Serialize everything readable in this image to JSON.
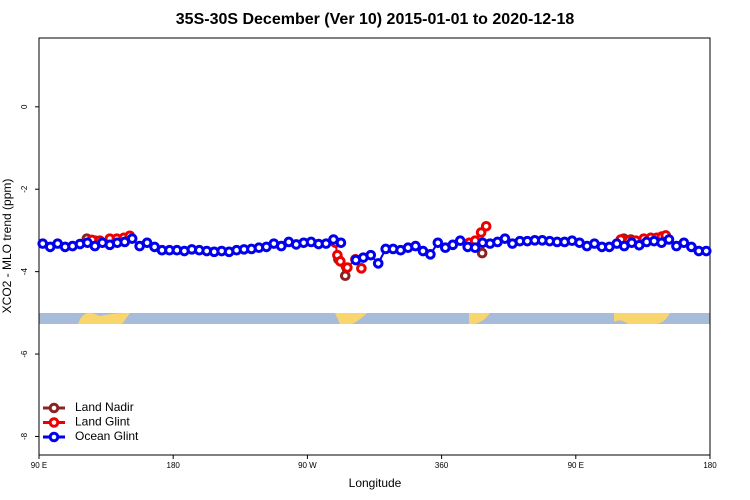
{
  "chart_data": {
    "type": "line",
    "title": "35S-30S December (Ver 10)   2015-01-01 to 2020-12-18",
    "x_label": "Longitude",
    "y_label": "XCO2 - MLO trend (ppm)",
    "xlim": [
      90,
      540
    ],
    "ylim": [
      -8.45,
      1.67
    ],
    "xticks": [
      {
        "value": 90,
        "label": "90 E"
      },
      180,
      {
        "value": 270,
        "label": "90 W"
      },
      360,
      {
        "value": 450,
        "label": "90 E"
      },
      {
        "value": 540,
        "label": "180"
      }
    ],
    "yticks": [
      0,
      -2,
      -4,
      -6,
      -8
    ],
    "legend": "bottom-left",
    "series": [
      {
        "name": "Land Nadir",
        "color": "#8b2323",
        "x": [
          122.1,
          127.5,
          200,
          290.8,
          295.4,
          340,
          383.2,
          387.2,
          430,
          482.2,
          486.9
        ],
        "values": [
          -3.2,
          -3.25,
          null,
          -3.7,
          -4.1,
          null,
          -3.32,
          -3.55,
          null,
          -3.2,
          -3.22
        ]
      },
      {
        "name": "Land Glint",
        "color": "#ee0000",
        "x": [
          125.5,
          130.8,
          137.5,
          142.2,
          146.9,
          150.9,
          200,
          288.8,
          290.1,
          292.1,
          296.8,
          302.2,
          306.2,
          340,
          378.5,
          382.5,
          386.5,
          389.9,
          430,
          480.2,
          485.6,
          490.3,
          495.6,
          500.3,
          504.3,
          507.7,
          510.3
        ],
        "values": [
          -3.23,
          -3.25,
          -3.2,
          -3.2,
          -3.18,
          -3.13,
          null,
          -3.3,
          -3.6,
          -3.75,
          -3.9,
          -3.7,
          -3.92,
          null,
          -3.3,
          -3.25,
          -3.05,
          -2.9,
          null,
          -3.22,
          -3.25,
          -3.25,
          -3.2,
          -3.18,
          -3.18,
          -3.15,
          -3.12
        ]
      },
      {
        "name": "Ocean Glint",
        "color": "#0000ee",
        "x": [
          92.5,
          97.5,
          102.5,
          107.5,
          112.5,
          117.5,
          122.5,
          127.5,
          132.5,
          137.5,
          142.5,
          147.5,
          152.5,
          157.5,
          162.5,
          167.5,
          172.5,
          177.5,
          182.5,
          187.5,
          192.5,
          197.5,
          202.5,
          207.5,
          212.5,
          217.5,
          222.5,
          227.5,
          232.5,
          237.5,
          242.5,
          247.5,
          252.5,
          257.5,
          262.5,
          267.5,
          272.5,
          277.5,
          282.5,
          287.5,
          292.5,
          297.5,
          302.5,
          307.5,
          312.5,
          317.5,
          322.5,
          327.5,
          332.5,
          337.5,
          342.5,
          347.5,
          352.5,
          357.5,
          362.5,
          367.5,
          372.5,
          377.5,
          382.5,
          387.5,
          392.5,
          397.5,
          402.5,
          407.5,
          412.5,
          417.5,
          422.5,
          427.5,
          432.5,
          437.5,
          442.5,
          447.5,
          452.5,
          457.5,
          462.5,
          467.5,
          472.5,
          477.5,
          482.5,
          487.5,
          492.5,
          497.5,
          502.5,
          507.5,
          512.5,
          517.5,
          522.5,
          527.5,
          532.5,
          537.5
        ],
        "values": [
          -3.32,
          -3.4,
          -3.32,
          -3.4,
          -3.38,
          -3.33,
          -3.3,
          -3.38,
          -3.3,
          -3.35,
          -3.3,
          -3.28,
          -3.2,
          -3.38,
          -3.3,
          -3.4,
          -3.48,
          -3.48,
          -3.48,
          -3.5,
          -3.46,
          -3.48,
          -3.5,
          -3.52,
          -3.5,
          -3.52,
          -3.48,
          -3.46,
          -3.45,
          -3.42,
          -3.4,
          -3.32,
          -3.38,
          -3.28,
          -3.34,
          -3.3,
          -3.28,
          -3.33,
          -3.32,
          -3.22,
          -3.3,
          null,
          -3.72,
          -3.66,
          -3.6,
          -3.8,
          -3.45,
          -3.45,
          -3.48,
          -3.42,
          -3.38,
          -3.5,
          -3.58,
          -3.3,
          -3.42,
          -3.35,
          -3.25,
          -3.4,
          -3.42,
          -3.3,
          -3.32,
          -3.28,
          -3.2,
          -3.32,
          -3.26,
          -3.26,
          -3.24,
          -3.24,
          -3.26,
          -3.28,
          -3.28,
          -3.25,
          -3.3,
          -3.38,
          -3.32,
          -3.4,
          -3.4,
          -3.32,
          -3.38,
          -3.3,
          -3.36,
          -3.28,
          -3.26,
          -3.3,
          -3.22,
          -3.38,
          -3.3,
          -3.4,
          -3.5,
          -3.5
        ]
      }
    ]
  }
}
